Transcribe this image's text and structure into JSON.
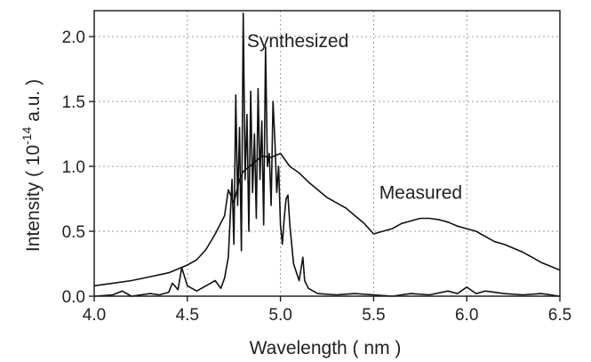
{
  "chart_data": {
    "type": "line",
    "xlabel": "Wavelength ( nm )",
    "ylabel_main": "Intensity ( 10",
    "ylabel_exp": "-14",
    "ylabel_tail": " a.u. )",
    "xlim": [
      4.0,
      6.5
    ],
    "ylim": [
      0.0,
      2.2
    ],
    "xticks": [
      4.0,
      4.5,
      5.0,
      5.5,
      6.0,
      6.5
    ],
    "xtick_labels": [
      "4.0",
      "4.5",
      "5.0",
      "5.5",
      "6.0",
      "6.5"
    ],
    "yticks": [
      0.0,
      0.5,
      1.0,
      1.5,
      2.0
    ],
    "ytick_labels": [
      "0.0",
      "0.5",
      "1.0",
      "1.5",
      "2.0"
    ],
    "grid": true,
    "series": [
      {
        "name": "Measured",
        "label_at": [
          5.53,
          0.75
        ],
        "x": [
          4.0,
          4.1,
          4.2,
          4.3,
          4.4,
          4.5,
          4.55,
          4.6,
          4.65,
          4.7,
          4.72,
          4.75,
          4.78,
          4.8,
          4.85,
          4.9,
          4.95,
          5.0,
          5.05,
          5.1,
          5.15,
          5.2,
          5.25,
          5.3,
          5.35,
          5.4,
          5.45,
          5.5,
          5.55,
          5.6,
          5.65,
          5.7,
          5.75,
          5.8,
          5.85,
          5.9,
          5.95,
          6.0,
          6.05,
          6.1,
          6.15,
          6.2,
          6.25,
          6.3,
          6.35,
          6.4,
          6.45,
          6.5
        ],
        "y": [
          0.08,
          0.1,
          0.12,
          0.15,
          0.18,
          0.24,
          0.28,
          0.36,
          0.48,
          0.62,
          0.82,
          0.72,
          0.9,
          0.96,
          1.02,
          1.08,
          1.07,
          1.1,
          1.0,
          0.95,
          0.88,
          0.82,
          0.76,
          0.72,
          0.68,
          0.62,
          0.56,
          0.48,
          0.5,
          0.52,
          0.56,
          0.58,
          0.6,
          0.6,
          0.59,
          0.57,
          0.54,
          0.52,
          0.5,
          0.46,
          0.42,
          0.4,
          0.37,
          0.34,
          0.3,
          0.26,
          0.23,
          0.2
        ]
      },
      {
        "name": "Synthesized",
        "label_at": [
          4.82,
          1.92
        ],
        "x": [
          4.0,
          4.1,
          4.15,
          4.2,
          4.3,
          4.35,
          4.4,
          4.42,
          4.45,
          4.47,
          4.5,
          4.55,
          4.6,
          4.65,
          4.68,
          4.7,
          4.72,
          4.74,
          4.75,
          4.76,
          4.77,
          4.78,
          4.79,
          4.8,
          4.81,
          4.82,
          4.83,
          4.84,
          4.85,
          4.86,
          4.87,
          4.88,
          4.89,
          4.9,
          4.91,
          4.92,
          4.93,
          4.94,
          4.95,
          4.96,
          4.97,
          4.98,
          4.99,
          5.0,
          5.01,
          5.02,
          5.03,
          5.04,
          5.05,
          5.07,
          5.1,
          5.12,
          5.13,
          5.15,
          5.2,
          5.3,
          5.4,
          5.5,
          5.6,
          5.7,
          5.8,
          5.9,
          5.95,
          6.0,
          6.05,
          6.1,
          6.2,
          6.3,
          6.4,
          6.5
        ],
        "y": [
          0.0,
          0.01,
          0.04,
          0.0,
          0.02,
          0.01,
          0.03,
          0.1,
          0.05,
          0.22,
          0.08,
          0.04,
          0.08,
          0.12,
          0.06,
          0.14,
          0.3,
          0.9,
          0.4,
          1.55,
          0.7,
          1.3,
          0.35,
          2.18,
          0.9,
          1.4,
          0.5,
          1.58,
          0.8,
          1.25,
          0.6,
          1.6,
          0.9,
          1.35,
          0.55,
          1.92,
          1.0,
          1.1,
          0.7,
          1.5,
          1.2,
          0.8,
          1.0,
          0.55,
          0.4,
          0.6,
          0.75,
          0.78,
          0.55,
          0.25,
          0.12,
          0.3,
          0.12,
          0.06,
          0.02,
          0.01,
          0.02,
          0.01,
          0.0,
          0.02,
          0.01,
          0.04,
          0.02,
          0.07,
          0.02,
          0.04,
          0.02,
          0.01,
          0.02,
          0.0
        ]
      }
    ]
  }
}
